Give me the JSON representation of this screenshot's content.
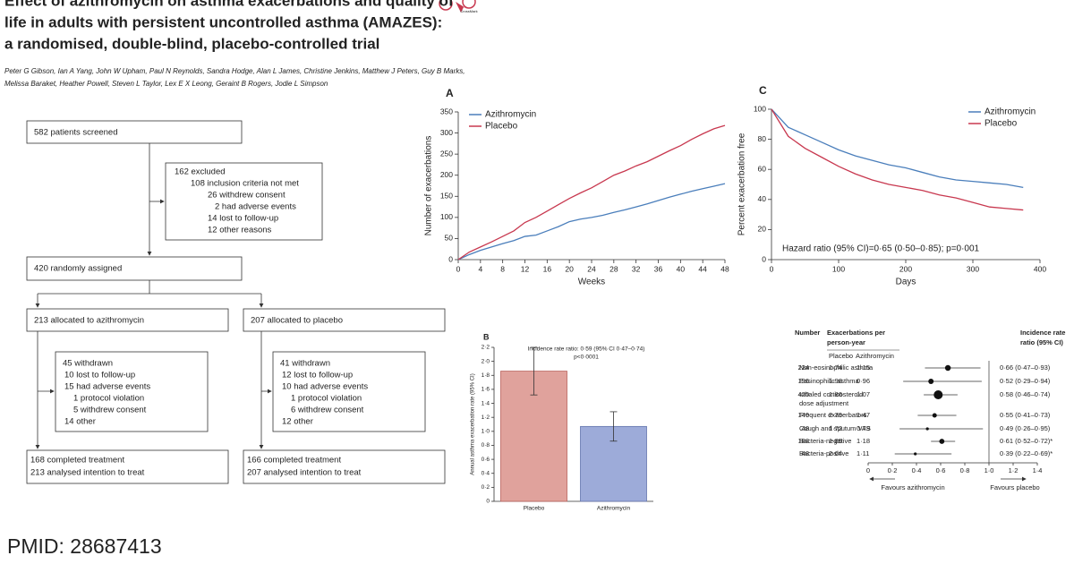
{
  "header": {
    "title_lines": [
      "Effect of azithromycin on asthma exacerbations and quality of",
      "life in adults with persistent uncontrolled asthma (AMAZES):",
      "a randomised, double-blind, placebo-controlled trial"
    ],
    "logo_text": "CrossMark",
    "authors_lines": [
      "Peter G Gibson, Ian A Yang, John W Upham, Paul N Reynolds, Sandra Hodge, Alan L James, Christine Jenkins, Matthew J Peters, Guy B Marks,",
      "Melissa Baraket, Heather Powell, Steven L Taylor, Lex E X Leong, Geraint B Rogers, Jodie L Simpson"
    ]
  },
  "flow": {
    "screened": "582 patients screened",
    "excluded": [
      "162 excluded",
      "108 inclusion criteria not met",
      "26 withdrew consent",
      "2 had adverse events",
      "14 lost to follow-up",
      "12 other reasons"
    ],
    "randomised": "420 randomly assigned",
    "arms": [
      {
        "allocated": "213 allocated to azithromycin",
        "withdrawn": [
          "45 withdrawn",
          "10 lost to follow-up",
          "15 had adverse events",
          "1 protocol violation",
          "5 withdrew consent",
          "14 other"
        ],
        "completed": [
          "168 completed treatment",
          "213 analysed intention to treat"
        ]
      },
      {
        "allocated": "207 allocated to placebo",
        "withdrawn": [
          "41 withdrawn",
          "12 lost to follow-up",
          "10 had adverse events",
          "1 protocol violation",
          "6 withdrew consent",
          "12 other"
        ],
        "completed": [
          "166 completed treatment",
          "207 analysed intention to treat"
        ]
      }
    ]
  },
  "chart_data": [
    {
      "type": "line",
      "title": "A",
      "xlabel": "Weeks",
      "ylabel": "Number of exacerbations",
      "x": [
        0,
        2,
        4,
        6,
        8,
        10,
        12,
        14,
        16,
        18,
        20,
        22,
        24,
        26,
        28,
        30,
        32,
        34,
        36,
        38,
        40,
        42,
        44,
        46,
        48
      ],
      "series": [
        {
          "name": "Azithromycin",
          "color": "#4a7ebb",
          "values": [
            0,
            12,
            22,
            30,
            38,
            45,
            55,
            58,
            68,
            78,
            90,
            96,
            100,
            105,
            112,
            118,
            125,
            132,
            140,
            148,
            155,
            162,
            168,
            174,
            180
          ]
        },
        {
          "name": "Placebo",
          "color": "#c8384f",
          "values": [
            0,
            18,
            30,
            42,
            55,
            68,
            88,
            100,
            115,
            130,
            145,
            158,
            170,
            185,
            200,
            210,
            222,
            232,
            245,
            258,
            270,
            285,
            298,
            310,
            318
          ]
        }
      ],
      "xlim": [
        0,
        48
      ],
      "xticks": [
        0,
        4,
        8,
        12,
        16,
        20,
        24,
        28,
        32,
        36,
        40,
        44,
        48
      ],
      "ylim": [
        0,
        350
      ],
      "yticks": [
        0,
        50,
        100,
        150,
        200,
        250,
        300,
        350
      ],
      "legend": "upper left"
    },
    {
      "type": "bar",
      "title": "B",
      "ylabel": "Annual asthma exacerbation rate (95% CI)",
      "annotation": [
        "Incidence rate ratio: 0·59 (95% CI 0·47–0·74)",
        "p<0·0001"
      ],
      "categories": [
        "Placebo",
        "Azithromycin"
      ],
      "values": [
        1.86,
        1.07
      ],
      "ci_low": [
        1.52,
        0.86
      ],
      "ci_high": [
        2.2,
        1.28
      ],
      "colors": [
        "#e0a29c",
        "#9dabd9"
      ],
      "edge_colors": [
        "#b9625c",
        "#6475ad"
      ],
      "ylim": [
        0,
        2.2
      ],
      "yticks": [
        0,
        {
          "value": 0.2,
          "label": "0·2"
        },
        {
          "value": 0.4,
          "label": "0·4"
        },
        {
          "value": 0.6,
          "label": "0·6"
        },
        {
          "value": 0.8,
          "label": "0·8"
        },
        {
          "value": 1.0,
          "label": "1·0"
        },
        {
          "value": 1.2,
          "label": "1·2"
        },
        {
          "value": 1.4,
          "label": "1·4"
        },
        {
          "value": 1.6,
          "label": "1·6"
        },
        {
          "value": 1.8,
          "label": "1·8"
        },
        {
          "value": 2.0,
          "label": "2·0"
        },
        {
          "value": 2.2,
          "label": "2·2"
        }
      ]
    },
    {
      "type": "line",
      "title": "C",
      "xlabel": "Days",
      "ylabel": "Percent exacerbation free",
      "annotation": "Hazard ratio (95% CI)=0·65 (0·50–0·85); p=0·001",
      "x": [
        0,
        25,
        50,
        75,
        100,
        125,
        150,
        175,
        200,
        225,
        250,
        275,
        300,
        325,
        350,
        375
      ],
      "series": [
        {
          "name": "Azithromycin",
          "color": "#4a7ebb",
          "values": [
            100,
            88,
            83,
            78,
            73,
            69,
            66,
            63,
            61,
            58,
            55,
            53,
            52,
            51,
            50,
            48
          ]
        },
        {
          "name": "Placebo",
          "color": "#c8384f",
          "values": [
            100,
            82,
            74,
            68,
            62,
            57,
            53,
            50,
            48,
            46,
            43,
            41,
            38,
            35,
            34,
            33
          ]
        }
      ],
      "xlim": [
        0,
        400
      ],
      "xticks": [
        0,
        100,
        200,
        300,
        400
      ],
      "ylim": [
        0,
        100
      ],
      "yticks": [
        0,
        20,
        40,
        60,
        80,
        100
      ],
      "legend": "upper right"
    },
    {
      "type": "forest",
      "headers": {
        "number": "Number",
        "rates": [
          "Exacerbations per",
          "person-year"
        ],
        "placebo": "Placebo",
        "azithromycin": "Azithromycin",
        "ratio": [
          "Incidence rate",
          "ratio (95% CI)"
        ]
      },
      "row_labels": [
        [
          "Non-eosinophilic asthma"
        ],
        [
          "Eosinophilic asthma"
        ],
        [
          "Inhaled corticosteroid",
          "dose adjustment"
        ],
        [
          "Frequent exacerbators"
        ],
        [
          "Cough and sputum VAS"
        ],
        [
          "Bacteria-negative"
        ],
        [
          "Bacteria-positive"
        ]
      ],
      "n": [
        224,
        196,
        420,
        140,
        48,
        188,
        48
      ],
      "placebo_rate": [
        "1·74",
        "1·98",
        "1·86",
        "2·79",
        "1·72",
        "1·85",
        "2·64"
      ],
      "azithromycin_rate": [
        "1·15",
        "0·96",
        "1·07",
        "1·47",
        "0·79",
        "1·18",
        "1·11"
      ],
      "values": [
        0.66,
        0.52,
        0.58,
        0.55,
        0.49,
        0.61,
        0.39
      ],
      "ci_low": [
        0.47,
        0.29,
        0.46,
        0.41,
        0.26,
        0.52,
        0.22
      ],
      "ci_high": [
        0.93,
        0.94,
        0.74,
        0.73,
        0.95,
        0.72,
        0.69
      ],
      "value_labels": [
        "0·66 (0·47–0·93)",
        "0·52 (0·29–0·94)",
        "0·58 (0·46–0·74)",
        "0·55 (0·41–0·73)",
        "0·49 (0·26–0·95)",
        "0·61 (0·52–0·72)*",
        "0·39 (0·22–0·69)*"
      ],
      "xlim": [
        0,
        1.4
      ],
      "xticks": [
        0,
        {
          "value": 0.2,
          "label": "0·2"
        },
        {
          "value": 0.4,
          "label": "0·4"
        },
        {
          "value": 0.6,
          "label": "0·6"
        },
        {
          "value": 0.8,
          "label": "0·8"
        },
        {
          "value": 1.0,
          "label": "1·0"
        },
        {
          "value": 1.2,
          "label": "1·2"
        },
        {
          "value": 1.4,
          "label": "1·4"
        }
      ],
      "reference": 1.0,
      "favours": [
        "Favours azithromycin",
        "Favours placebo"
      ]
    }
  ],
  "footer": {
    "pmid": "PMID: 28687413"
  }
}
